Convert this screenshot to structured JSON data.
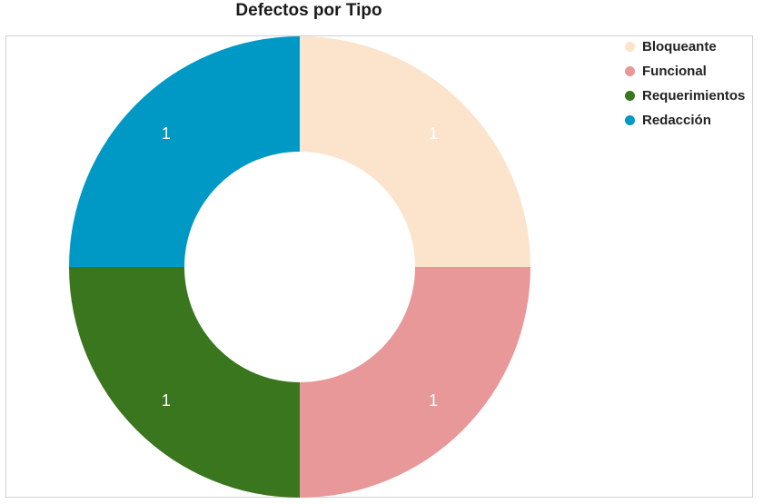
{
  "chart_data": {
    "type": "pie",
    "title": "Defectos por Tipo",
    "donut": true,
    "categories": [
      "Bloqueante",
      "Funcional",
      "Requerimientos",
      "Redacción"
    ],
    "values": [
      1,
      1,
      1,
      1
    ],
    "data_labels": [
      "1",
      "1",
      "1",
      "1"
    ],
    "colors": [
      "#fbe4cb",
      "#e89898",
      "#3a761e",
      "#0099c6"
    ],
    "legend_position": "top-right"
  }
}
